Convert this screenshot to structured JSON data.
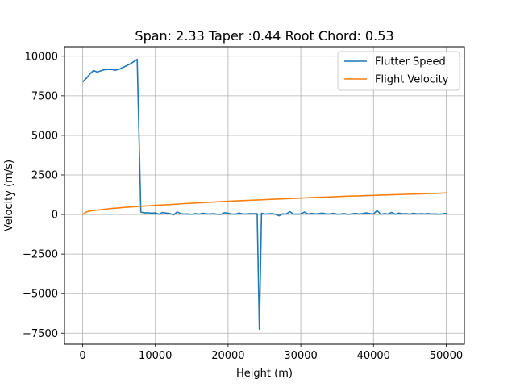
{
  "chart_data": {
    "type": "line",
    "title": "Span: 2.33 Taper :0.44 Root Chord: 0.53",
    "xlabel": "Height (m)",
    "ylabel": "Velocity (m/s)",
    "xlim": [
      -2500,
      52500
    ],
    "ylim": [
      -8200,
      10600
    ],
    "xticks": [
      0,
      10000,
      20000,
      30000,
      40000,
      50000
    ],
    "yticks": [
      -7500,
      -5000,
      -2500,
      0,
      2500,
      5000,
      7500,
      10000
    ],
    "grid": true,
    "legend_position": "top-right",
    "series": [
      {
        "name": "Flutter Speed",
        "color": "#1f77b4",
        "points": [
          [
            0,
            8380
          ],
          [
            500,
            8600
          ],
          [
            1000,
            8880
          ],
          [
            1500,
            9100
          ],
          [
            2000,
            9000
          ],
          [
            2500,
            9080
          ],
          [
            3000,
            9150
          ],
          [
            3500,
            9170
          ],
          [
            4000,
            9160
          ],
          [
            4500,
            9120
          ],
          [
            5000,
            9180
          ],
          [
            5500,
            9280
          ],
          [
            6000,
            9390
          ],
          [
            6500,
            9510
          ],
          [
            7000,
            9650
          ],
          [
            7500,
            9800
          ],
          [
            8000,
            150
          ],
          [
            8500,
            100
          ],
          [
            9000,
            110
          ],
          [
            9500,
            80
          ],
          [
            10000,
            100
          ],
          [
            10500,
            20
          ],
          [
            11000,
            130
          ],
          [
            11500,
            90
          ],
          [
            12000,
            60
          ],
          [
            12500,
            -20
          ],
          [
            13000,
            160
          ],
          [
            13500,
            50
          ],
          [
            14000,
            30
          ],
          [
            14500,
            40
          ],
          [
            15000,
            10
          ],
          [
            15500,
            60
          ],
          [
            16000,
            20
          ],
          [
            16500,
            80
          ],
          [
            17000,
            40
          ],
          [
            17500,
            30
          ],
          [
            18000,
            50
          ],
          [
            18500,
            20
          ],
          [
            19000,
            10
          ],
          [
            19500,
            110
          ],
          [
            20000,
            80
          ],
          [
            20500,
            30
          ],
          [
            21000,
            20
          ],
          [
            21500,
            90
          ],
          [
            22000,
            40
          ],
          [
            22500,
            30
          ],
          [
            23000,
            60
          ],
          [
            23500,
            50
          ],
          [
            24000,
            50
          ],
          [
            24300,
            -7250
          ],
          [
            24600,
            80
          ],
          [
            25000,
            40
          ],
          [
            25500,
            30
          ],
          [
            26000,
            60
          ],
          [
            26500,
            20
          ],
          [
            27000,
            -80
          ],
          [
            27500,
            40
          ],
          [
            28000,
            30
          ],
          [
            28500,
            180
          ],
          [
            29000,
            20
          ],
          [
            29500,
            30
          ],
          [
            30000,
            40
          ],
          [
            30500,
            150
          ],
          [
            31000,
            30
          ],
          [
            31500,
            70
          ],
          [
            32000,
            40
          ],
          [
            32500,
            60
          ],
          [
            33000,
            90
          ],
          [
            33500,
            30
          ],
          [
            34000,
            40
          ],
          [
            34500,
            70
          ],
          [
            35000,
            20
          ],
          [
            35500,
            30
          ],
          [
            36000,
            60
          ],
          [
            36500,
            10
          ],
          [
            37000,
            40
          ],
          [
            37500,
            70
          ],
          [
            38000,
            30
          ],
          [
            38500,
            60
          ],
          [
            39000,
            100
          ],
          [
            39500,
            60
          ],
          [
            40000,
            30
          ],
          [
            40500,
            250
          ],
          [
            41000,
            10
          ],
          [
            41500,
            60
          ],
          [
            42000,
            30
          ],
          [
            42500,
            130
          ],
          [
            43000,
            20
          ],
          [
            43500,
            90
          ],
          [
            44000,
            40
          ],
          [
            44500,
            60
          ],
          [
            45000,
            20
          ],
          [
            45500,
            80
          ],
          [
            46000,
            30
          ],
          [
            46500,
            50
          ],
          [
            47000,
            40
          ],
          [
            47500,
            60
          ],
          [
            48000,
            30
          ],
          [
            48500,
            40
          ],
          [
            49000,
            20
          ],
          [
            49500,
            40
          ],
          [
            50000,
            80
          ]
        ]
      },
      {
        "name": "Flight Velocity",
        "color": "#ff7f0e",
        "points": [
          [
            0,
            0
          ],
          [
            500,
            160
          ],
          [
            1000,
            220
          ],
          [
            2000,
            280
          ],
          [
            3000,
            330
          ],
          [
            4000,
            380
          ],
          [
            5000,
            420
          ],
          [
            6000,
            460
          ],
          [
            7000,
            490
          ],
          [
            8000,
            520
          ],
          [
            10000,
            580
          ],
          [
            12000,
            630
          ],
          [
            14000,
            690
          ],
          [
            16000,
            740
          ],
          [
            18000,
            790
          ],
          [
            20000,
            840
          ],
          [
            22000,
            880
          ],
          [
            24000,
            920
          ],
          [
            26000,
            960
          ],
          [
            28000,
            1000
          ],
          [
            30000,
            1040
          ],
          [
            32000,
            1080
          ],
          [
            34000,
            1110
          ],
          [
            36000,
            1150
          ],
          [
            38000,
            1180
          ],
          [
            40000,
            1210
          ],
          [
            42000,
            1240
          ],
          [
            44000,
            1270
          ],
          [
            46000,
            1300
          ],
          [
            48000,
            1330
          ],
          [
            50000,
            1360
          ]
        ]
      }
    ]
  }
}
